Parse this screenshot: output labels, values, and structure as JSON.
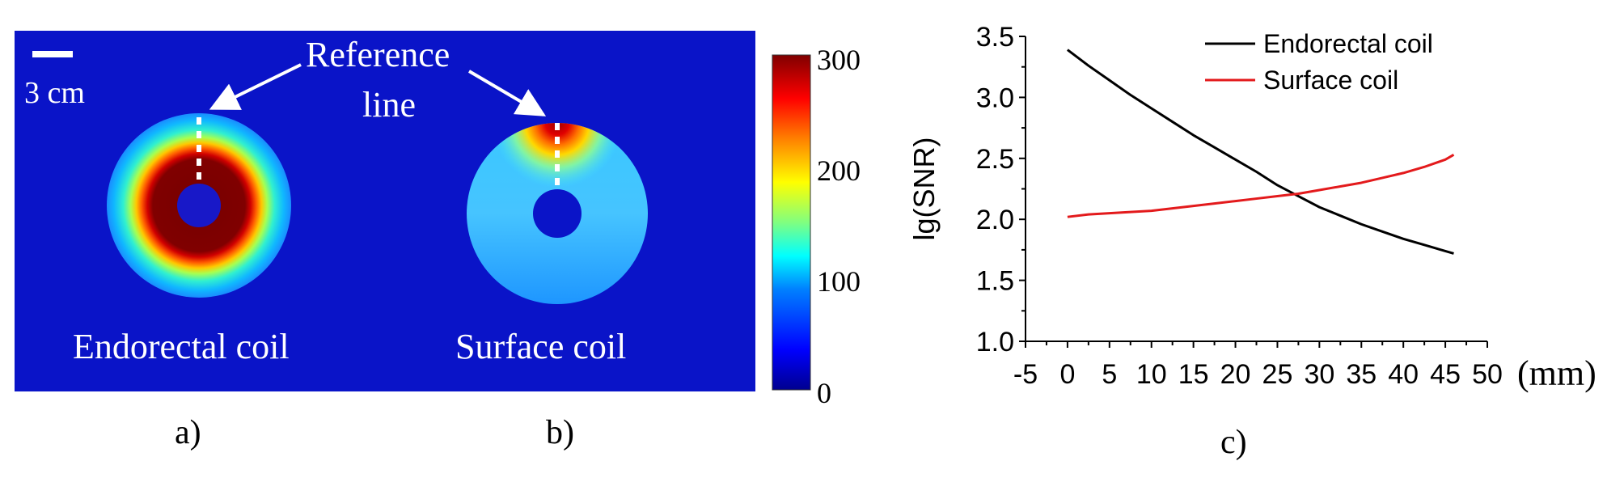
{
  "colors": {
    "background_field": "#0a14c8",
    "colormap": [
      "#00008f",
      "#0000ff",
      "#0080ff",
      "#00ffff",
      "#80ff80",
      "#ffff00",
      "#ff8000",
      "#ff0000",
      "#800000"
    ],
    "panel_text": "#ffffff",
    "endorectal_series": "#000000",
    "surface_series": "#e31a1c"
  },
  "panel_a": {
    "label": "a)",
    "scale_bar_label": "3 cm",
    "reference_label_line1": "Reference",
    "reference_label_line2": "line",
    "phantom_endorectal_label": "Endorectal coil"
  },
  "panel_b": {
    "label": "b)",
    "phantom_surface_label": "Surface coil"
  },
  "colorbar": {
    "ticks": [
      "300",
      "200",
      "100",
      "0"
    ]
  },
  "panel_c": {
    "label": "c)"
  },
  "chart_data": {
    "type": "line",
    "title": "",
    "xlabel": "(mm)",
    "ylabel": "lg(SNR)",
    "xlim": [
      -5,
      50
    ],
    "ylim": [
      1.0,
      3.5
    ],
    "xticks": [
      "-5",
      "0",
      "5",
      "10",
      "15",
      "20",
      "25",
      "30",
      "35",
      "40",
      "45",
      "50"
    ],
    "yticks": [
      "1.0",
      "1.5",
      "2.0",
      "2.5",
      "3.0",
      "3.5"
    ],
    "legend_position": "top-right",
    "grid": false,
    "x": [
      0,
      2.5,
      5,
      7.5,
      10,
      12.5,
      15,
      17.5,
      20,
      22.5,
      25,
      27.5,
      30,
      32.5,
      35,
      37.5,
      40,
      42.5,
      45,
      46
    ],
    "series": [
      {
        "name": "Endorectal coil",
        "color": "#000000",
        "values": [
          3.39,
          3.26,
          3.14,
          3.02,
          2.91,
          2.8,
          2.69,
          2.59,
          2.49,
          2.39,
          2.28,
          2.19,
          2.1,
          2.03,
          1.96,
          1.9,
          1.84,
          1.79,
          1.74,
          1.72
        ]
      },
      {
        "name": "Surface coil",
        "color": "#e31a1c",
        "values": [
          2.02,
          2.04,
          2.05,
          2.06,
          2.07,
          2.09,
          2.11,
          2.13,
          2.15,
          2.17,
          2.19,
          2.21,
          2.24,
          2.27,
          2.3,
          2.34,
          2.38,
          2.43,
          2.49,
          2.53
        ]
      }
    ]
  }
}
